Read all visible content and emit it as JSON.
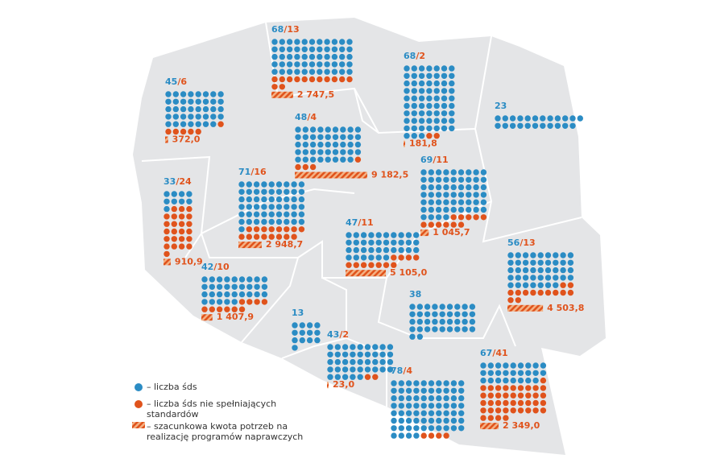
{
  "regions": [
    {
      "total": 45,
      "substandard": 6,
      "amount": {
        "value": 372.0,
        "label": "372,0"
      }
    },
    {
      "total": 68,
      "substandard": 13,
      "amount": {
        "value": 2747.5,
        "label": "2 747,5"
      }
    },
    {
      "total": 68,
      "substandard": 2,
      "amount": {
        "value": 181.8,
        "label": "181,8"
      }
    },
    {
      "total": 23
    },
    {
      "total": 48,
      "substandard": 4,
      "amount": {
        "value": 9182.5,
        "label": "9 182,5"
      }
    },
    {
      "total": 33,
      "substandard": 24,
      "amount": {
        "value": 910.9,
        "label": "910,9"
      }
    },
    {
      "total": 71,
      "substandard": 16,
      "amount": {
        "value": 2948.7,
        "label": "2 948,7"
      }
    },
    {
      "total": 69,
      "substandard": 11,
      "amount": {
        "value": 1045.7,
        "label": "1 045,7"
      }
    },
    {
      "total": 47,
      "substandard": 11,
      "amount": {
        "value": 5105.0,
        "label": "5 105,0"
      }
    },
    {
      "total": 56,
      "substandard": 13,
      "amount": {
        "value": 4503.8,
        "label": "4 503,8"
      }
    },
    {
      "total": 42,
      "substandard": 10,
      "amount": {
        "value": 1407.9,
        "label": "1 407,9"
      }
    },
    {
      "total": 38
    },
    {
      "total": 13
    },
    {
      "total": 43,
      "substandard": 2,
      "amount": {
        "value": 23.0,
        "label": "23,0"
      }
    },
    {
      "total": 78,
      "substandard": 4
    },
    {
      "total": 67,
      "substandard": 41,
      "amount": {
        "value": 2349.0,
        "label": "2 349,0"
      }
    }
  ],
  "legend": {
    "total": "– liczba śds",
    "substandard": [
      "– liczba śds nie spełniających",
      "standardów"
    ],
    "amount": [
      "– szacunkowa kwota potrzeb na",
      "realizację programów naprawczych"
    ]
  }
}
